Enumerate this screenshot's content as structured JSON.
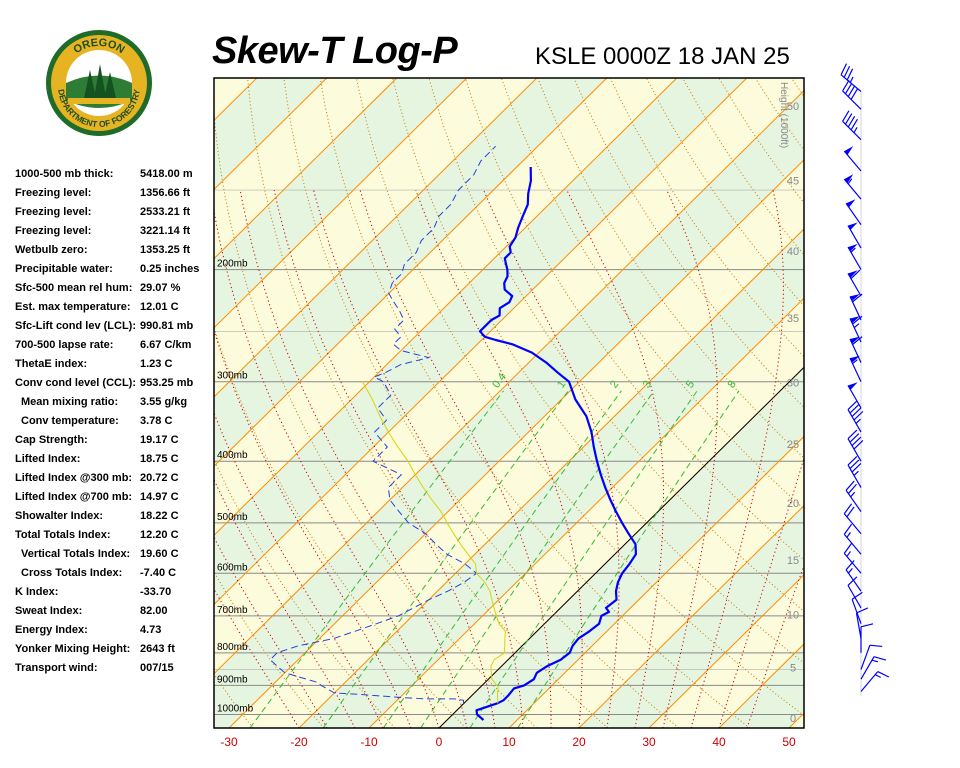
{
  "header": {
    "title": "Skew-T Log-P",
    "station": "KSLE 0000Z 18 JAN 25"
  },
  "logo": {
    "top_text": "OREGON",
    "bottom_text": "DEPARTMENT OF FORESTRY"
  },
  "indices": [
    {
      "label": "1000-500 mb thick:",
      "value": "5418.00 m",
      "indent": false
    },
    {
      "label": "Freezing level:",
      "value": "1356.66 ft",
      "indent": false
    },
    {
      "label": "Freezing level:",
      "value": "2533.21 ft",
      "indent": false
    },
    {
      "label": "Freezing level:",
      "value": "3221.14 ft",
      "indent": false
    },
    {
      "label": "Wetbulb zero:",
      "value": "1353.25 ft",
      "indent": false
    },
    {
      "label": "Precipitable water:",
      "value": "0.25 inches",
      "indent": false
    },
    {
      "label": "Sfc-500 mean rel hum:",
      "value": "29.07 %",
      "indent": false
    },
    {
      "label": "Est. max temperature:",
      "value": "12.01 C",
      "indent": false
    },
    {
      "label": "Sfc-Lift cond lev (LCL):",
      "value": "990.81 mb",
      "indent": false
    },
    {
      "label": "700-500 lapse rate:",
      "value": "6.67 C/km",
      "indent": false
    },
    {
      "label": "ThetaE index:",
      "value": "1.23 C",
      "indent": false
    },
    {
      "label": "Conv cond level (CCL):",
      "value": "953.25 mb",
      "indent": false
    },
    {
      "label": "Mean mixing ratio:",
      "value": "3.55 g/kg",
      "indent": true
    },
    {
      "label": "Conv temperature:",
      "value": "3.78 C",
      "indent": true
    },
    {
      "label": "Cap Strength:",
      "value": "19.17 C",
      "indent": false
    },
    {
      "label": "Lifted Index:",
      "value": "18.75 C",
      "indent": false
    },
    {
      "label": "Lifted Index @300 mb:",
      "value": "20.72 C",
      "indent": false
    },
    {
      "label": "Lifted Index @700 mb:",
      "value": "14.97 C",
      "indent": false
    },
    {
      "label": "Showalter Index:",
      "value": "18.22 C",
      "indent": false
    },
    {
      "label": "Total Totals Index:",
      "value": "12.20 C",
      "indent": false
    },
    {
      "label": "Vertical Totals Index:",
      "value": "19.60 C",
      "indent": true
    },
    {
      "label": "Cross Totals Index:",
      "value": "-7.40 C",
      "indent": true
    },
    {
      "label": "K Index:",
      "value": "-33.70",
      "indent": false
    },
    {
      "label": "Sweat Index:",
      "value": "82.00",
      "indent": false
    },
    {
      "label": "Energy Index:",
      "value": "4.73",
      "indent": false
    },
    {
      "label": "Yonker Mixing Height:",
      "value": "2643 ft",
      "indent": false
    },
    {
      "label": "Transport wind:",
      "value": "007/15",
      "indent": false
    }
  ],
  "colors": {
    "temperature": "#0000ff",
    "dewpoint": "#2244dd",
    "parcel": "#d6d600",
    "isotherm": "#ff8c00",
    "dry_adiabat": "#c87800",
    "moist_adiabat": "#cc0000",
    "mixing_ratio": "#33bb33",
    "band_green": "#e6f5e0",
    "band_yellow": "#fcfbdc",
    "axis_tick_label": "#cc0000",
    "height_label": "#888888"
  },
  "chart_data": {
    "type": "line",
    "chart_kind": "skew-t log-p",
    "xlabel": "",
    "ylabel": "",
    "xlim": [
      -32,
      52
    ],
    "ylim_mb": [
      1050,
      100
    ],
    "x_ticks": [
      "-30",
      "-20",
      "-10",
      "0",
      "10",
      "20",
      "30",
      "40",
      "50"
    ],
    "pressure_labels": [
      "200mb",
      "300mb",
      "400mb",
      "500mb",
      "600mb",
      "700mb",
      "800mb",
      "900mb",
      "1000mb"
    ],
    "height_axis_label": "Height (1000ft)",
    "height_ticks": [
      "0",
      "5",
      "10",
      "15",
      "20",
      "25",
      "30",
      "35",
      "40",
      "45",
      "50"
    ],
    "mixing_ratio_labels": [
      "0.4",
      "1",
      "2",
      "3",
      "5",
      "8"
    ],
    "series": [
      {
        "key": "temperature",
        "points": [
          [
            5.2,
            1020
          ],
          [
            3.5,
            1000
          ],
          [
            2.8,
            985
          ],
          [
            4.8,
            960
          ],
          [
            5.2,
            950
          ],
          [
            5.2,
            935
          ],
          [
            5.0,
            910
          ],
          [
            6.0,
            900
          ],
          [
            6.5,
            880
          ],
          [
            6.0,
            860
          ],
          [
            6.5,
            840
          ],
          [
            7.5,
            820
          ],
          [
            7.8,
            800
          ],
          [
            7.2,
            780
          ],
          [
            7.0,
            760
          ],
          [
            7.5,
            740
          ],
          [
            7.8,
            720
          ],
          [
            7.0,
            700
          ],
          [
            7.5,
            690
          ],
          [
            6.5,
            680
          ],
          [
            6.8,
            660
          ],
          [
            5.5,
            640
          ],
          [
            4.5,
            620
          ],
          [
            3.8,
            600
          ],
          [
            3.5,
            580
          ],
          [
            3.0,
            560
          ],
          [
            1.5,
            540
          ],
          [
            -1.0,
            520
          ],
          [
            -3.5,
            500
          ],
          [
            -6.0,
            480
          ],
          [
            -8.5,
            460
          ],
          [
            -11.0,
            440
          ],
          [
            -13.5,
            420
          ],
          [
            -16.0,
            400
          ],
          [
            -18.5,
            380
          ],
          [
            -21.0,
            360
          ],
          [
            -24.0,
            340
          ],
          [
            -28.0,
            320
          ],
          [
            -31.5,
            300
          ],
          [
            -34.5,
            290
          ],
          [
            -37.5,
            280
          ],
          [
            -41.0,
            270
          ],
          [
            -45.0,
            262
          ],
          [
            -48.0,
            258
          ],
          [
            -50.0,
            255
          ],
          [
            -51.5,
            250
          ],
          [
            -51.5,
            245
          ],
          [
            -51.5,
            240
          ],
          [
            -51.0,
            236
          ],
          [
            -52.0,
            230
          ],
          [
            -51.5,
            225
          ],
          [
            -52.0,
            220
          ],
          [
            -54.0,
            215
          ],
          [
            -55.0,
            210
          ],
          [
            -55.5,
            205
          ],
          [
            -56.5,
            200
          ],
          [
            -57.5,
            196
          ],
          [
            -58.5,
            192
          ],
          [
            -58.5,
            188
          ],
          [
            -59.5,
            184
          ],
          [
            -60.0,
            178
          ],
          [
            -61.0,
            172
          ],
          [
            -62.0,
            165
          ],
          [
            -63.0,
            158
          ],
          [
            -64.5,
            152
          ],
          [
            -66.0,
            145
          ],
          [
            -68.0,
            138
          ]
        ]
      },
      {
        "key": "dewpoint",
        "points": [
          [
            0.0,
            962
          ],
          [
            -0.5,
            950
          ],
          [
            -2.0,
            945
          ],
          [
            -6.0,
            945
          ],
          [
            -10.0,
            940
          ],
          [
            -16.0,
            930
          ],
          [
            -20.0,
            925
          ],
          [
            -23.0,
            900
          ],
          [
            -24.0,
            890
          ],
          [
            -30.0,
            860
          ],
          [
            -32.0,
            840
          ],
          [
            -34.0,
            820
          ],
          [
            -34.0,
            800
          ],
          [
            -32.0,
            780
          ],
          [
            -28.0,
            760
          ],
          [
            -26.0,
            740
          ],
          [
            -24.0,
            720
          ],
          [
            -22.0,
            700
          ],
          [
            -21.0,
            680
          ],
          [
            -20.0,
            660
          ],
          [
            -18.5,
            640
          ],
          [
            -17.5,
            620
          ],
          [
            -17.0,
            600
          ],
          [
            -20.0,
            580
          ],
          [
            -24.0,
            560
          ],
          [
            -27.0,
            540
          ],
          [
            -30.0,
            520
          ],
          [
            -34.0,
            500
          ],
          [
            -37.0,
            480
          ],
          [
            -40.0,
            460
          ],
          [
            -42.0,
            440
          ],
          [
            -42.0,
            420
          ],
          [
            -48.0,
            400
          ],
          [
            -48.0,
            380
          ],
          [
            -52.0,
            360
          ],
          [
            -52.0,
            345
          ],
          [
            -55.0,
            330
          ],
          [
            -55.0,
            315
          ],
          [
            -58.0,
            300
          ],
          [
            -60.0,
            295
          ],
          [
            -59.0,
            290
          ],
          [
            -58.0,
            282
          ],
          [
            -55.0,
            275
          ],
          [
            -60.0,
            268
          ],
          [
            -62.0,
            262
          ],
          [
            -62.0,
            255
          ],
          [
            -64.0,
            248
          ],
          [
            -64.0,
            240
          ],
          [
            -66.0,
            232
          ],
          [
            -68.0,
            225
          ],
          [
            -70.0,
            218
          ],
          [
            -71.0,
            210
          ],
          [
            -71.0,
            203
          ],
          [
            -72.0,
            196
          ],
          [
            -72.0,
            188
          ],
          [
            -73.0,
            180
          ],
          [
            -73.0,
            172
          ],
          [
            -74.0,
            165
          ],
          [
            -74.0,
            158
          ],
          [
            -75.0,
            150
          ],
          [
            -75.0,
            142
          ],
          [
            -76.0,
            135
          ],
          [
            -76.0,
            128
          ]
        ]
      },
      {
        "key": "parcel",
        "points": [
          [
            4.8,
            960
          ],
          [
            3.5,
            930
          ],
          [
            2.5,
            905
          ],
          [
            0.5,
            880
          ],
          [
            -0.5,
            860
          ],
          [
            -1.5,
            840
          ],
          [
            -2.0,
            820
          ],
          [
            -1.5,
            800
          ],
          [
            -2.5,
            780
          ],
          [
            -3.5,
            760
          ],
          [
            -4.5,
            740
          ],
          [
            -6.5,
            720
          ],
          [
            -8.0,
            700
          ],
          [
            -9.5,
            680
          ],
          [
            -11.0,
            660
          ],
          [
            -12.5,
            640
          ],
          [
            -14.5,
            620
          ],
          [
            -17.0,
            600
          ],
          [
            -18.5,
            580
          ],
          [
            -21.0,
            560
          ],
          [
            -23.5,
            540
          ],
          [
            -26.0,
            520
          ],
          [
            -28.5,
            500
          ],
          [
            -31.0,
            480
          ],
          [
            -34.0,
            460
          ],
          [
            -37.0,
            440
          ],
          [
            -40.0,
            420
          ],
          [
            -43.0,
            400
          ],
          [
            -46.5,
            380
          ],
          [
            -50.0,
            360
          ],
          [
            -53.5,
            340
          ],
          [
            -57.0,
            320
          ],
          [
            -61.0,
            300
          ]
        ]
      }
    ],
    "wind_barbs": [
      {
        "p": 920,
        "dir": 40,
        "spd": 15
      },
      {
        "p": 880,
        "dir": 30,
        "spd": 15
      },
      {
        "p": 850,
        "dir": 20,
        "spd": 10
      },
      {
        "p": 800,
        "dir": 360,
        "spd": 10
      },
      {
        "p": 760,
        "dir": 350,
        "spd": 10
      },
      {
        "p": 720,
        "dir": 340,
        "spd": 10
      },
      {
        "p": 680,
        "dir": 330,
        "spd": 10
      },
      {
        "p": 640,
        "dir": 325,
        "spd": 15
      },
      {
        "p": 600,
        "dir": 320,
        "spd": 15
      },
      {
        "p": 560,
        "dir": 320,
        "spd": 15
      },
      {
        "p": 520,
        "dir": 320,
        "spd": 20
      },
      {
        "p": 480,
        "dir": 325,
        "spd": 25
      },
      {
        "p": 440,
        "dir": 330,
        "spd": 35
      },
      {
        "p": 400,
        "dir": 330,
        "spd": 40
      },
      {
        "p": 360,
        "dir": 330,
        "spd": 45
      },
      {
        "p": 330,
        "dir": 330,
        "spd": 50
      },
      {
        "p": 300,
        "dir": 335,
        "spd": 55
      },
      {
        "p": 280,
        "dir": 335,
        "spd": 60
      },
      {
        "p": 260,
        "dir": 335,
        "spd": 65
      },
      {
        "p": 240,
        "dir": 335,
        "spd": 60
      },
      {
        "p": 220,
        "dir": 330,
        "spd": 60
      },
      {
        "p": 200,
        "dir": 330,
        "spd": 55
      },
      {
        "p": 185,
        "dir": 330,
        "spd": 50
      },
      {
        "p": 170,
        "dir": 325,
        "spd": 50
      },
      {
        "p": 155,
        "dir": 320,
        "spd": 55
      },
      {
        "p": 140,
        "dir": 320,
        "spd": 50
      },
      {
        "p": 125,
        "dir": 315,
        "spd": 45
      },
      {
        "p": 112,
        "dir": 315,
        "spd": 40
      },
      {
        "p": 105,
        "dir": 310,
        "spd": 35
      }
    ]
  }
}
